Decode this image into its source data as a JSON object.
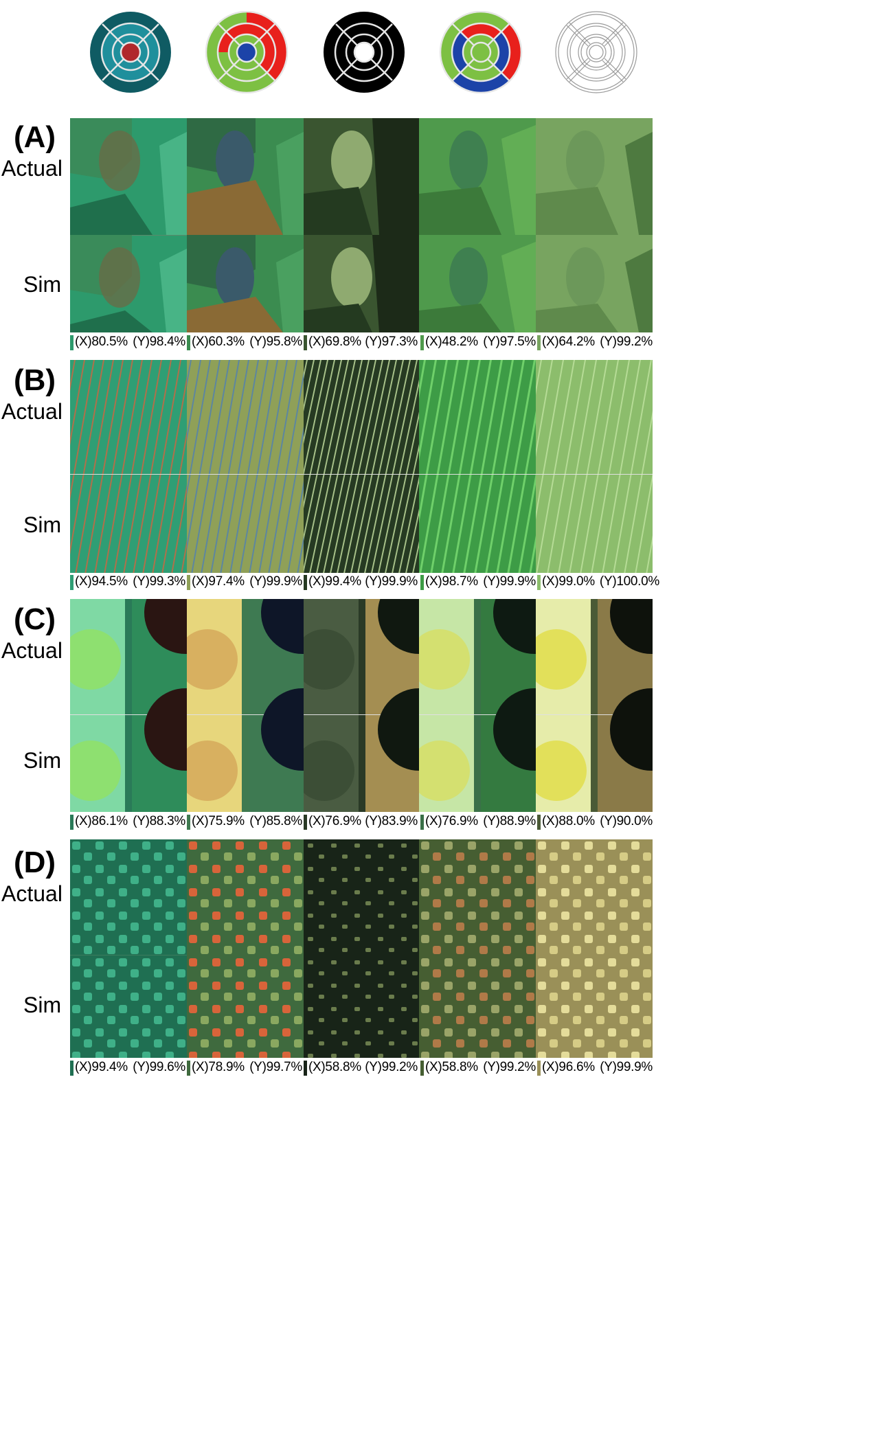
{
  "colors": {
    "teal_dark": "#0f5b63",
    "teal": "#1f8f9c",
    "dark_red": "#b0282c",
    "red": "#e8201c",
    "green": "#7dc043",
    "blue": "#1c43a8",
    "black": "#000000",
    "white": "#ffffff"
  },
  "patterns": [
    {
      "name": "pattern-1",
      "outer": "teal-dark",
      "middle": "teal",
      "inner": "teal",
      "center": "dark-red"
    },
    {
      "name": "pattern-2",
      "outer": "green/red",
      "middle": "red/green",
      "inner": "green",
      "center": "blue"
    },
    {
      "name": "pattern-3",
      "outer": "black",
      "middle": "black",
      "inner": "black",
      "center": "white"
    },
    {
      "name": "pattern-4",
      "outer": "green/red/blue",
      "middle": "red/blue/green",
      "inner": "green",
      "center": "green"
    },
    {
      "name": "pattern-5",
      "outer": "white",
      "middle": "white",
      "inner": "white",
      "center": "white"
    }
  ],
  "panels": [
    {
      "letter": "(A)",
      "row_labels": [
        "Actual",
        "Sim"
      ],
      "captions": [
        {
          "x": "(X)80.5%",
          "y": "(Y)98.4%"
        },
        {
          "x": "(X)60.3%",
          "y": "(Y)95.8%"
        },
        {
          "x": "(X)69.8%",
          "y": "(Y)97.3%"
        },
        {
          "x": "(X)48.2%",
          "y": "(Y)97.5%"
        },
        {
          "x": "(X)64.2%",
          "y": "(Y)99.2%"
        }
      ]
    },
    {
      "letter": "(B)",
      "row_labels": [
        "Actual",
        "Sim"
      ],
      "captions": [
        {
          "x": "(X)94.5%",
          "y": "(Y)99.3%"
        },
        {
          "x": "(X)97.4%",
          "y": "(Y)99.9%"
        },
        {
          "x": "(X)99.4%",
          "y": "(Y)99.9%"
        },
        {
          "x": "(X)98.7%",
          "y": "(Y)99.9%"
        },
        {
          "x": "(X)99.0%",
          "y": "(Y)100.0%"
        }
      ]
    },
    {
      "letter": "(C)",
      "row_labels": [
        "Actual",
        "Sim"
      ],
      "captions": [
        {
          "x": "(X)86.1%",
          "y": "(Y)88.3%"
        },
        {
          "x": "(X)75.9%",
          "y": "(Y)85.8%"
        },
        {
          "x": "(X)76.9%",
          "y": "(Y)83.9%"
        },
        {
          "x": "(X)76.9%",
          "y": "(Y)88.9%"
        },
        {
          "x": "(X)88.0%",
          "y": "(Y)90.0%"
        }
      ]
    },
    {
      "letter": "(D)",
      "row_labels": [
        "Actual",
        "Sim"
      ],
      "captions": [
        {
          "x": "(X)99.4%",
          "y": "(Y)99.6%"
        },
        {
          "x": "(X)78.9%",
          "y": "(Y)99.7%"
        },
        {
          "x": "(X)58.8%",
          "y": "(Y)99.2%"
        },
        {
          "x": "(X)58.8%",
          "y": "(Y)99.2%"
        },
        {
          "x": "(X)96.6%",
          "y": "(Y)99.9%"
        }
      ]
    }
  ]
}
